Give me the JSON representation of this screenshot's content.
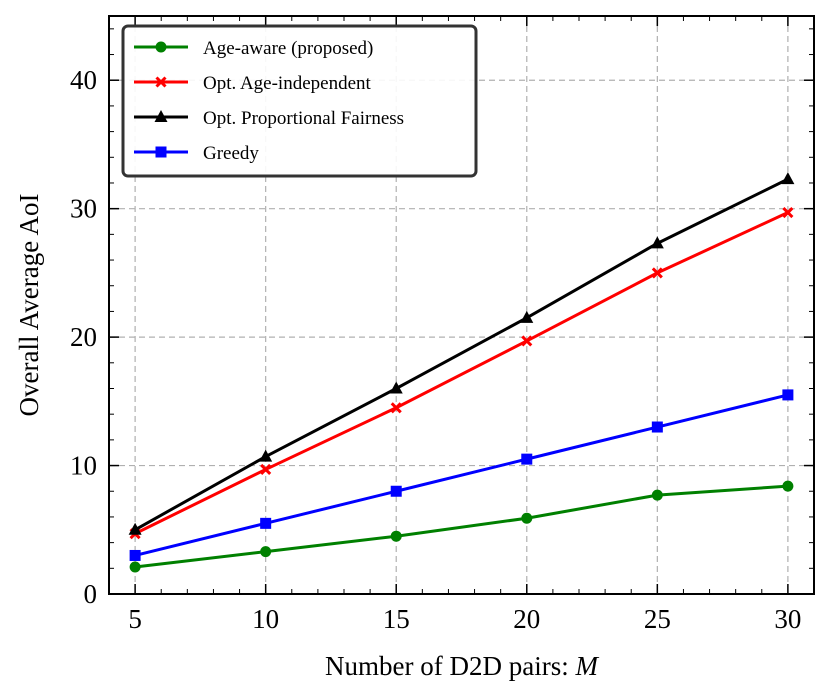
{
  "chart_data": {
    "type": "line",
    "xlabel": "Number of D2D pairs: ",
    "xlabel_var": "M",
    "ylabel": "Overall Average AoI",
    "x": [
      5,
      10,
      15,
      20,
      25,
      30
    ],
    "xlim": [
      4,
      31
    ],
    "ylim": [
      0,
      45
    ],
    "xticks": [
      5,
      10,
      15,
      20,
      25,
      30
    ],
    "yticks": [
      0,
      10,
      20,
      30,
      40
    ],
    "grid": true,
    "legend_position": "top-left",
    "series": [
      {
        "name": "Age-aware (proposed)",
        "color": "#008000",
        "marker": "circle",
        "values": [
          2.1,
          3.3,
          4.5,
          5.9,
          7.7,
          8.4
        ]
      },
      {
        "name": "Opt. Age-independent",
        "color": "#ff0000",
        "marker": "x",
        "values": [
          4.7,
          9.7,
          14.5,
          19.7,
          25.0,
          29.7
        ]
      },
      {
        "name": "Opt. Proportional Fairness",
        "color": "#000000",
        "marker": "triangle",
        "values": [
          5.0,
          10.7,
          16.0,
          21.5,
          27.3,
          32.3
        ]
      },
      {
        "name": "Greedy",
        "color": "#0000ff",
        "marker": "square",
        "values": [
          3.0,
          5.5,
          8.0,
          10.5,
          13.0,
          15.5
        ]
      }
    ]
  }
}
